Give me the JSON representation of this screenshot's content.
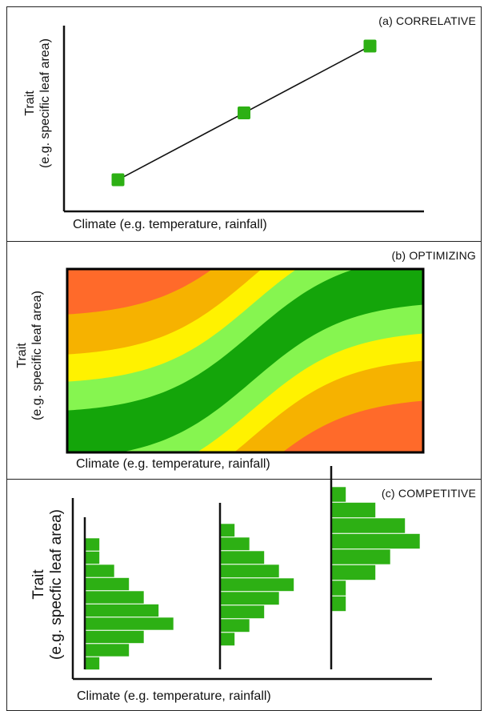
{
  "colors": {
    "marker": "#2db014",
    "line": "#111111",
    "zone_best": "#14a50a",
    "zone_good": "#86f550",
    "zone_mid": "#fff200",
    "zone_poor": "#f6b200",
    "zone_worst": "#ff6a2a",
    "hist_bar": "#2db014"
  },
  "panel_a": {
    "title": "(a) CORRELATIVE",
    "ylabel_line1": "Trait",
    "ylabel_line2": "(e.g. specific leaf area)",
    "xlabel": "Climate (e.g. temperature, rainfall)",
    "points": [
      {
        "climate": 0.15,
        "trait": 0.17
      },
      {
        "climate": 0.5,
        "trait": 0.53
      },
      {
        "climate": 0.85,
        "trait": 0.89
      }
    ]
  },
  "panel_b": {
    "title": "(b) OPTIMIZING",
    "ylabel_line1": "Trait",
    "ylabel_line2": "(e.g. specific leaf area)",
    "xlabel": "Climate (e.g. temperature, rainfall)",
    "zones": [
      "optimal",
      "good",
      "intermediate",
      "poor",
      "worst"
    ]
  },
  "panel_c": {
    "title": "(c) COMPETITIVE",
    "ylabel_line1": "Trait",
    "ylabel_line2": "(e.g. specfic leaf area)",
    "xlabel": "Climate (e.g. temperature, rainfall)",
    "histograms": [
      {
        "climate": "low",
        "counts": [
          1,
          1,
          2,
          3,
          4,
          5,
          6,
          4,
          3,
          1
        ]
      },
      {
        "climate": "mid",
        "counts": [
          1,
          2,
          3,
          4,
          5,
          4,
          3,
          2,
          1
        ]
      },
      {
        "climate": "high",
        "counts": [
          1,
          3,
          5,
          6,
          4,
          3,
          1,
          1
        ]
      }
    ]
  }
}
